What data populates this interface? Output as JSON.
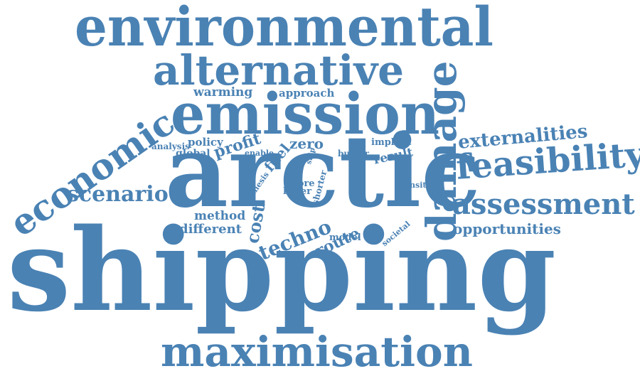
{
  "word_color": "#4a82b4",
  "words": [
    "shipping",
    "arctic",
    "emission",
    "environmental",
    "alternative",
    "maximisation",
    "economic",
    "damage",
    "feasibility",
    "assessment",
    "externalities",
    "scenario",
    "techno",
    "opportunities",
    "cost",
    "route",
    "profit",
    "different",
    "method",
    "zero",
    "fuel",
    "warming",
    "approach",
    "policy",
    "analysis",
    "global",
    "result",
    "implicit",
    "enable",
    "bulker",
    "ship",
    "more",
    "lower",
    "thesis",
    "shorter",
    "transit",
    "model",
    "societal"
  ]
}
